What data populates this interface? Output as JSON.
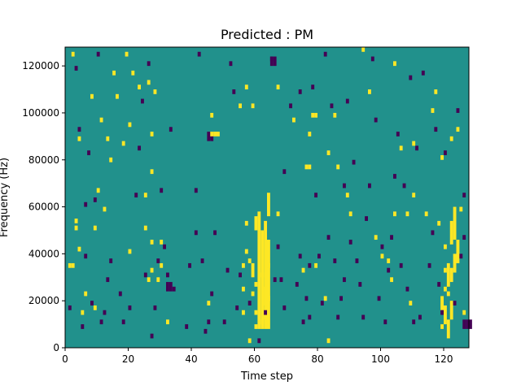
{
  "chart_data": {
    "type": "heatmap",
    "title": "Predicted : PM",
    "xlabel": "Time step",
    "ylabel": "Frequency (Hz)",
    "xlim": [
      0,
      128
    ],
    "ylim": [
      0,
      128000
    ],
    "xticks": [
      0,
      20,
      40,
      60,
      80,
      100,
      120
    ],
    "yticks": [
      0,
      20000,
      40000,
      60000,
      80000,
      100000,
      120000
    ],
    "grid": false,
    "colormap": {
      "background": "#21918c",
      "low": "#440154",
      "high": "#fde725"
    },
    "cell": {
      "width": 1,
      "height": 2000
    },
    "high_cells": [
      [
        1,
        34000
      ],
      [
        2,
        34000
      ],
      [
        3,
        53000
      ],
      [
        3,
        50000
      ],
      [
        4,
        41000
      ],
      [
        5,
        14000
      ],
      [
        6,
        22000
      ],
      [
        2,
        124000
      ],
      [
        4,
        88000
      ],
      [
        8,
        106000
      ],
      [
        9,
        50000
      ],
      [
        9,
        16000
      ],
      [
        10,
        66000
      ],
      [
        11,
        96000
      ],
      [
        12,
        58000
      ],
      [
        13,
        88000
      ],
      [
        14,
        79000
      ],
      [
        15,
        116000
      ],
      [
        16,
        106000
      ],
      [
        18,
        86000
      ],
      [
        19,
        124000
      ],
      [
        20,
        40000
      ],
      [
        20,
        94000
      ],
      [
        21,
        116000
      ],
      [
        23,
        110000
      ],
      [
        25,
        64000
      ],
      [
        25,
        50000
      ],
      [
        26,
        28000
      ],
      [
        26,
        112000
      ],
      [
        27,
        32000
      ],
      [
        27,
        44000
      ],
      [
        27,
        74000
      ],
      [
        27,
        90000
      ],
      [
        28,
        108000
      ],
      [
        29,
        28000
      ],
      [
        30,
        44000
      ],
      [
        30,
        34000
      ],
      [
        32,
        10000
      ],
      [
        46,
        90000
      ],
      [
        46,
        98000
      ],
      [
        47,
        90000
      ],
      [
        48,
        90000
      ],
      [
        45,
        18000
      ],
      [
        55,
        102000
      ],
      [
        56,
        14000
      ],
      [
        56,
        24000
      ],
      [
        56,
        34000
      ],
      [
        57,
        52000
      ],
      [
        57,
        40000
      ],
      [
        57,
        110000
      ],
      [
        58,
        36000
      ],
      [
        59,
        22000
      ],
      [
        59,
        102000
      ],
      [
        60,
        8000
      ],
      [
        60,
        14000
      ],
      [
        60,
        26000
      ],
      [
        62,
        10000
      ],
      [
        62,
        30000
      ],
      [
        58,
        2000
      ],
      [
        63,
        12000
      ],
      [
        64,
        20000
      ],
      [
        64,
        34000
      ],
      [
        67,
        110000
      ],
      [
        67,
        56000
      ],
      [
        72,
        96000
      ],
      [
        75,
        32000
      ],
      [
        76,
        76000
      ],
      [
        77,
        76000
      ],
      [
        77,
        90000
      ],
      [
        78,
        98000
      ],
      [
        79,
        98000
      ],
      [
        79,
        34000
      ],
      [
        82,
        20000
      ],
      [
        83,
        82000
      ],
      [
        83,
        2000
      ],
      [
        85,
        98000
      ],
      [
        86,
        76000
      ],
      [
        89,
        64000
      ],
      [
        90,
        56000
      ],
      [
        94,
        126000
      ],
      [
        96,
        108000
      ],
      [
        98,
        46000
      ],
      [
        100,
        38000
      ],
      [
        102,
        36000
      ],
      [
        103,
        28000
      ],
      [
        104,
        120000
      ],
      [
        104,
        56000
      ],
      [
        106,
        84000
      ],
      [
        108,
        56000
      ],
      [
        110,
        64000
      ],
      [
        110,
        86000
      ],
      [
        109,
        18000
      ],
      [
        114,
        56000
      ],
      [
        116,
        100000
      ],
      [
        117,
        108000
      ],
      [
        118,
        52000
      ],
      [
        119,
        80000
      ],
      [
        119,
        8000
      ],
      [
        120,
        32000
      ],
      [
        120,
        24000
      ],
      [
        120,
        42000
      ],
      [
        121,
        22000
      ],
      [
        122,
        88000
      ],
      [
        124,
        92000
      ],
      [
        126,
        14000
      ],
      [
        125,
        58000
      ]
    ],
    "high_runs": [
      [
        61,
        8000,
        58000
      ],
      [
        62,
        8000,
        50000
      ],
      [
        63,
        8000,
        54000
      ],
      [
        64,
        8000,
        46000
      ],
      [
        64,
        56000,
        66000
      ],
      [
        60,
        50000,
        56000
      ],
      [
        59,
        30000,
        36000
      ],
      [
        63,
        18000,
        26000
      ],
      [
        119,
        16000,
        22000
      ],
      [
        120,
        10000,
        18000
      ],
      [
        121,
        4000,
        12000
      ],
      [
        122,
        12000,
        20000
      ],
      [
        121,
        26000,
        36000
      ],
      [
        122,
        28000,
        34000
      ],
      [
        123,
        32000,
        40000
      ],
      [
        122,
        44000,
        54000
      ],
      [
        124,
        36000,
        46000
      ],
      [
        123,
        46000,
        60000
      ]
    ],
    "low_cells": [
      [
        1,
        16000
      ],
      [
        3,
        118000
      ],
      [
        4,
        92000
      ],
      [
        5,
        8000
      ],
      [
        6,
        38000
      ],
      [
        6,
        60000
      ],
      [
        7,
        82000
      ],
      [
        8,
        18000
      ],
      [
        9,
        62000
      ],
      [
        10,
        124000
      ],
      [
        11,
        10000
      ],
      [
        12,
        14000
      ],
      [
        13,
        28000
      ],
      [
        14,
        36000
      ],
      [
        17,
        22000
      ],
      [
        18,
        10000
      ],
      [
        20,
        16000
      ],
      [
        22,
        64000
      ],
      [
        23,
        84000
      ],
      [
        24,
        104000
      ],
      [
        25,
        30000
      ],
      [
        26,
        120000
      ],
      [
        27,
        4000
      ],
      [
        28,
        16000
      ],
      [
        29,
        36000
      ],
      [
        30,
        66000
      ],
      [
        31,
        42000
      ],
      [
        32,
        30000
      ],
      [
        33,
        92000
      ],
      [
        34,
        24000
      ],
      [
        38,
        8000
      ],
      [
        39,
        34000
      ],
      [
        41,
        48000
      ],
      [
        41,
        66000
      ],
      [
        42,
        124000
      ],
      [
        43,
        36000
      ],
      [
        44,
        6000
      ],
      [
        45,
        10000
      ],
      [
        46,
        22000
      ],
      [
        47,
        48000
      ],
      [
        50,
        10000
      ],
      [
        51,
        32000
      ],
      [
        52,
        120000
      ],
      [
        53,
        108000
      ],
      [
        54,
        16000
      ],
      [
        55,
        30000
      ],
      [
        58,
        18000
      ],
      [
        61,
        2000
      ],
      [
        63,
        14000
      ],
      [
        65,
        122000
      ],
      [
        66,
        28000
      ],
      [
        67,
        42000
      ],
      [
        68,
        28000
      ],
      [
        69,
        16000
      ],
      [
        69,
        74000
      ],
      [
        71,
        102000
      ],
      [
        73,
        26000
      ],
      [
        74,
        38000
      ],
      [
        74,
        108000
      ],
      [
        75,
        10000
      ],
      [
        76,
        20000
      ],
      [
        77,
        12000
      ],
      [
        77,
        34000
      ],
      [
        78,
        110000
      ],
      [
        79,
        64000
      ],
      [
        80,
        38000
      ],
      [
        81,
        18000
      ],
      [
        82,
        124000
      ],
      [
        83,
        46000
      ],
      [
        84,
        102000
      ],
      [
        85,
        36000
      ],
      [
        86,
        12000
      ],
      [
        87,
        20000
      ],
      [
        88,
        28000
      ],
      [
        88,
        68000
      ],
      [
        89,
        104000
      ],
      [
        90,
        44000
      ],
      [
        91,
        78000
      ],
      [
        92,
        36000
      ],
      [
        93,
        26000
      ],
      [
        94,
        12000
      ],
      [
        95,
        54000
      ],
      [
        96,
        68000
      ],
      [
        97,
        122000
      ],
      [
        98,
        96000
      ],
      [
        99,
        20000
      ],
      [
        100,
        42000
      ],
      [
        101,
        10000
      ],
      [
        102,
        32000
      ],
      [
        103,
        46000
      ],
      [
        104,
        72000
      ],
      [
        105,
        90000
      ],
      [
        106,
        34000
      ],
      [
        107,
        68000
      ],
      [
        108,
        24000
      ],
      [
        109,
        114000
      ],
      [
        110,
        10000
      ],
      [
        111,
        84000
      ],
      [
        112,
        12000
      ],
      [
        113,
        116000
      ],
      [
        115,
        34000
      ],
      [
        116,
        48000
      ],
      [
        117,
        92000
      ],
      [
        118,
        26000
      ],
      [
        119,
        14000
      ],
      [
        120,
        82000
      ],
      [
        123,
        18000
      ],
      [
        124,
        100000
      ],
      [
        125,
        38000
      ],
      [
        126,
        64000
      ],
      [
        126,
        46000
      ]
    ],
    "low_runs": [
      [
        45,
        88000,
        92000
      ],
      [
        46,
        88000,
        92000
      ],
      [
        65,
        120000,
        124000
      ],
      [
        66,
        120000,
        124000
      ],
      [
        127,
        8000,
        12000
      ],
      [
        128,
        8000,
        12000
      ],
      [
        126,
        8000,
        12000
      ],
      [
        32,
        24000,
        28000
      ],
      [
        33,
        24000,
        28000
      ]
    ]
  }
}
